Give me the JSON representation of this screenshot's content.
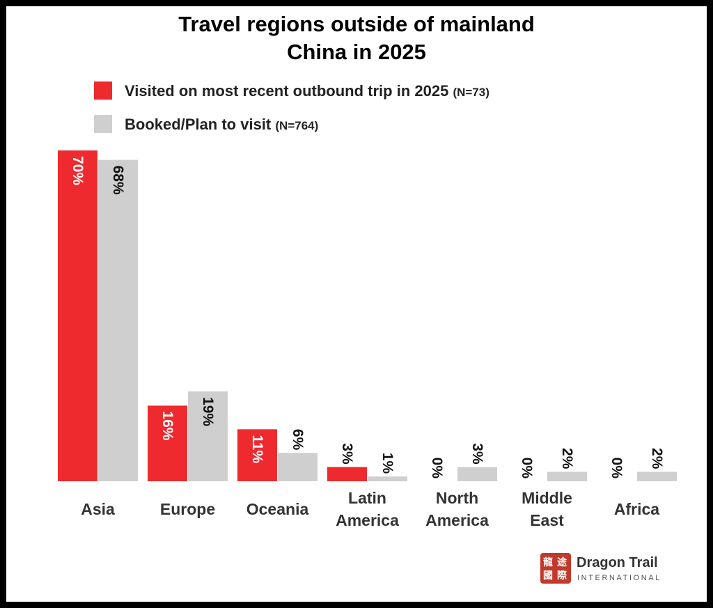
{
  "chart_data": {
    "type": "bar",
    "title_lines": [
      "Travel regions outside of mainland",
      "China in 2025"
    ],
    "categories": [
      [
        "Asia"
      ],
      [
        "Europe"
      ],
      [
        "Oceania"
      ],
      [
        "Latin",
        "America"
      ],
      [
        "North",
        "America"
      ],
      [
        "Middle",
        "East"
      ],
      [
        "Africa"
      ]
    ],
    "series": [
      {
        "name": "Visited on most recent outbound trip in 2025",
        "n_label": "(N=73)",
        "color": "#ee2a2e",
        "values": [
          70,
          16,
          11,
          3,
          0,
          0,
          0
        ],
        "labels": [
          "70%",
          "16%",
          "11%",
          "3%",
          "0%",
          "0%",
          "0%"
        ]
      },
      {
        "name": "Booked/Plan to visit",
        "n_label": "(N=764)",
        "color": "#cfcfcf",
        "values": [
          68,
          19,
          6,
          1,
          3,
          2,
          2
        ],
        "labels": [
          "68%",
          "19%",
          "6%",
          "1%",
          "3%",
          "2%",
          "2%"
        ]
      }
    ],
    "ylim": [
      0,
      70
    ],
    "grid": false,
    "legend_position": "top"
  },
  "logo": {
    "name": "Dragon Trail",
    "subtitle": "INTERNATIONAL",
    "seal_chars": [
      "龍",
      "途",
      "國",
      "際"
    ],
    "color": "#c0392b"
  }
}
